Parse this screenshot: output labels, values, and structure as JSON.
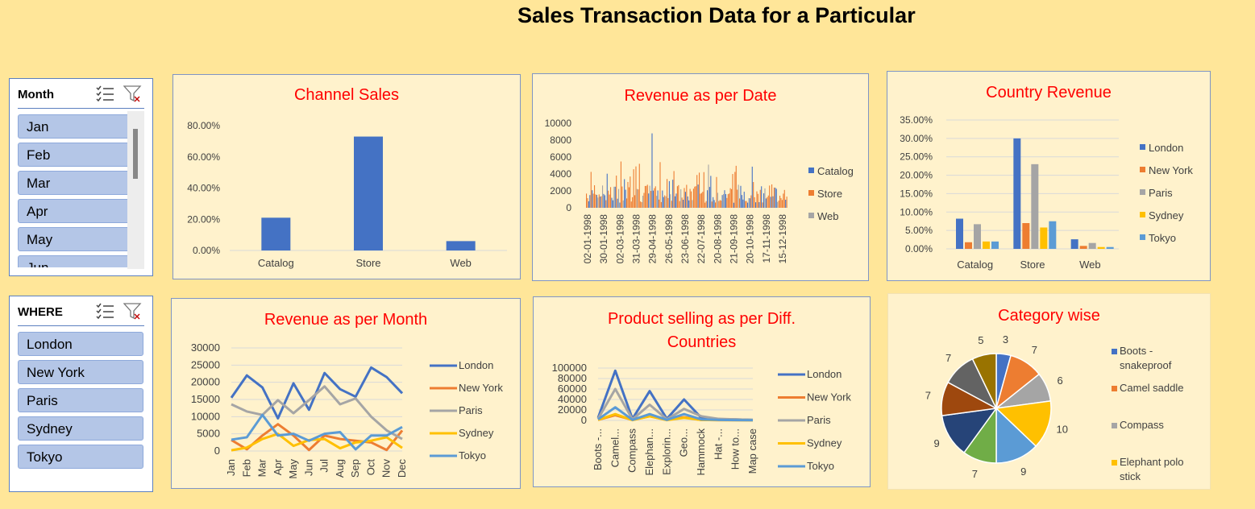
{
  "page_title": "Sales Transaction Data for a Particular",
  "colors": {
    "blue": "#4472C4",
    "orange": "#ED7D31",
    "gray": "#A5A5A5",
    "yellow": "#FFC000",
    "lightblue": "#5B9BD5",
    "title_red": "#FF0000",
    "background": "#FFE699",
    "panel": "#FFF2CC",
    "slicer_item": "#B4C6E7"
  },
  "slicers": {
    "month": {
      "title": "Month",
      "items": [
        "Jan",
        "Feb",
        "Mar",
        "Apr",
        "May",
        "Jun"
      ],
      "icons": [
        "multi-select-icon",
        "clear-filter-icon"
      ]
    },
    "where": {
      "title": "WHERE",
      "items": [
        "London",
        "New York",
        "Paris",
        "Sydney",
        "Tokyo"
      ],
      "icons": [
        "multi-select-icon",
        "clear-filter-icon"
      ]
    }
  },
  "chart_data": [
    {
      "id": "channel_sales",
      "type": "bar",
      "title": "Channel Sales",
      "categories": [
        "Catalog",
        "Store",
        "Web"
      ],
      "values": [
        0.21,
        0.73,
        0.06
      ],
      "ytick_labels": [
        "0.00%",
        "20.00%",
        "40.00%",
        "60.00%",
        "80.00%"
      ],
      "ylim": [
        0,
        0.8
      ],
      "grid": true,
      "legend": "none"
    },
    {
      "id": "revenue_date",
      "type": "bar",
      "title": "Revenue as per Date",
      "x_labels": [
        "02-01-1998",
        "30-01-1998",
        "02-03-1998",
        "31-03-1998",
        "29-04-1998",
        "26-05-1998",
        "23-06-1998",
        "22-07-1998",
        "20-08-1998",
        "21-09-1998",
        "20-10-1998",
        "17-11-1998",
        "15-12-1998"
      ],
      "ytick_labels": [
        "0",
        "2000",
        "4000",
        "6000",
        "8000",
        "10000"
      ],
      "ylim": [
        0,
        10000
      ],
      "series": [
        {
          "name": "Catalog"
        },
        {
          "name": "Store"
        },
        {
          "name": "Web"
        }
      ],
      "notes_values": "dense daily bars, mostly 1000-3000, peak about 8800 near 31-03-1998",
      "legend": "right"
    },
    {
      "id": "country_revenue",
      "type": "bar",
      "title": "Country Revenue",
      "categories": [
        "Catalog",
        "Store",
        "Web"
      ],
      "ytick_labels": [
        "0.00%",
        "5.00%",
        "10.00%",
        "15.00%",
        "20.00%",
        "25.00%",
        "30.00%",
        "35.00%"
      ],
      "ylim": [
        0,
        0.35
      ],
      "series": [
        {
          "name": "London",
          "values": [
            0.082,
            0.3,
            0.026
          ]
        },
        {
          "name": "New York",
          "values": [
            0.018,
            0.07,
            0.008
          ]
        },
        {
          "name": "Paris",
          "values": [
            0.067,
            0.23,
            0.016
          ]
        },
        {
          "name": "Sydney",
          "values": [
            0.02,
            0.058,
            0.005
          ]
        },
        {
          "name": "Tokyo",
          "values": [
            0.02,
            0.075,
            0.005
          ]
        }
      ],
      "grid": true,
      "legend": "right"
    },
    {
      "id": "revenue_month",
      "type": "line",
      "title": "Revenue as per Month",
      "categories": [
        "Jan",
        "Feb",
        "Mar",
        "Apr",
        "May",
        "Jun",
        "Jul",
        "Aug",
        "Sep",
        "Oct",
        "Nov",
        "Dec"
      ],
      "ytick_labels": [
        "0",
        "5000",
        "10000",
        "15000",
        "20000",
        "25000",
        "30000"
      ],
      "ylim": [
        0,
        30000
      ],
      "series": [
        {
          "name": "London",
          "values": [
            15500,
            22000,
            18500,
            9500,
            19700,
            12000,
            22700,
            18000,
            15800,
            24300,
            21500,
            16800
          ]
        },
        {
          "name": "New York",
          "values": [
            3200,
            500,
            4500,
            7800,
            4500,
            300,
            4500,
            3500,
            3000,
            2500,
            300,
            6000
          ]
        },
        {
          "name": "Paris",
          "values": [
            13600,
            11500,
            10500,
            14800,
            11000,
            14800,
            18800,
            13600,
            15300,
            10000,
            6000,
            3500
          ]
        },
        {
          "name": "Sydney",
          "values": [
            200,
            1000,
            3500,
            5000,
            1500,
            3200,
            3500,
            800,
            2500,
            3000,
            4000,
            900
          ]
        },
        {
          "name": "Tokyo",
          "values": [
            3300,
            4000,
            10500,
            4500,
            5000,
            3000,
            5000,
            5500,
            500,
            4500,
            4500,
            7000
          ]
        }
      ],
      "grid": true,
      "legend": "right"
    },
    {
      "id": "product_countries",
      "type": "line",
      "title": "Product selling as per Diff. Countries",
      "title_lines": [
        "Product selling as per Diff.",
        "Countries"
      ],
      "categories": [
        "Boots -...",
        "Camel...",
        "Compass",
        "Elephan...",
        "Explorin...",
        "Geo...",
        "Hammock",
        "Hat -...",
        "How to...",
        "Map case"
      ],
      "ytick_labels": [
        "0",
        "20000",
        "40000",
        "60000",
        "80000",
        "100000"
      ],
      "ylim": [
        0,
        100000
      ],
      "series": [
        {
          "name": "London",
          "values": [
            5000,
            95000,
            3000,
            56000,
            3000,
            40000,
            5000,
            2000,
            2000,
            1000
          ]
        },
        {
          "name": "New York",
          "values": [
            1000,
            10000,
            1000,
            8000,
            1000,
            6000,
            1000,
            500,
            500,
            300
          ]
        },
        {
          "name": "Paris",
          "values": [
            3000,
            60000,
            2000,
            30000,
            2000,
            22000,
            8000,
            3000,
            2000,
            1000
          ]
        },
        {
          "name": "Sydney",
          "values": [
            1000,
            12000,
            500,
            8000,
            500,
            5000,
            1000,
            500,
            300,
            200
          ]
        },
        {
          "name": "Tokyo",
          "values": [
            2000,
            25000,
            1000,
            12000,
            1000,
            12000,
            2000,
            1000,
            500,
            300
          ]
        }
      ],
      "grid": true,
      "legend": "right"
    },
    {
      "id": "category_wise",
      "type": "pie",
      "title": "Category wise",
      "values": [
        3,
        7,
        6,
        10,
        9,
        7,
        9,
        7,
        7,
        5
      ],
      "value_labels": [
        "3",
        "7",
        "6",
        "10",
        "9",
        "7",
        "9",
        "7",
        "7",
        "5"
      ],
      "colors": [
        "#4472C4",
        "#ED7D31",
        "#A5A5A5",
        "#FFC000",
        "#5B9BD5",
        "#70AD47",
        "#264478",
        "#9E480E",
        "#636363",
        "#997300"
      ],
      "legend_entries": [
        {
          "name_lines": [
            "Boots -",
            "snakeproof"
          ],
          "color": "#4472C4"
        },
        {
          "name_lines": [
            "Camel saddle"
          ],
          "color": "#ED7D31"
        },
        {
          "name_lines": [
            "Compass"
          ],
          "color": "#A5A5A5"
        },
        {
          "name_lines": [
            "Elephant polo",
            "stick"
          ],
          "color": "#FFC000"
        }
      ],
      "legend": "right"
    }
  ]
}
